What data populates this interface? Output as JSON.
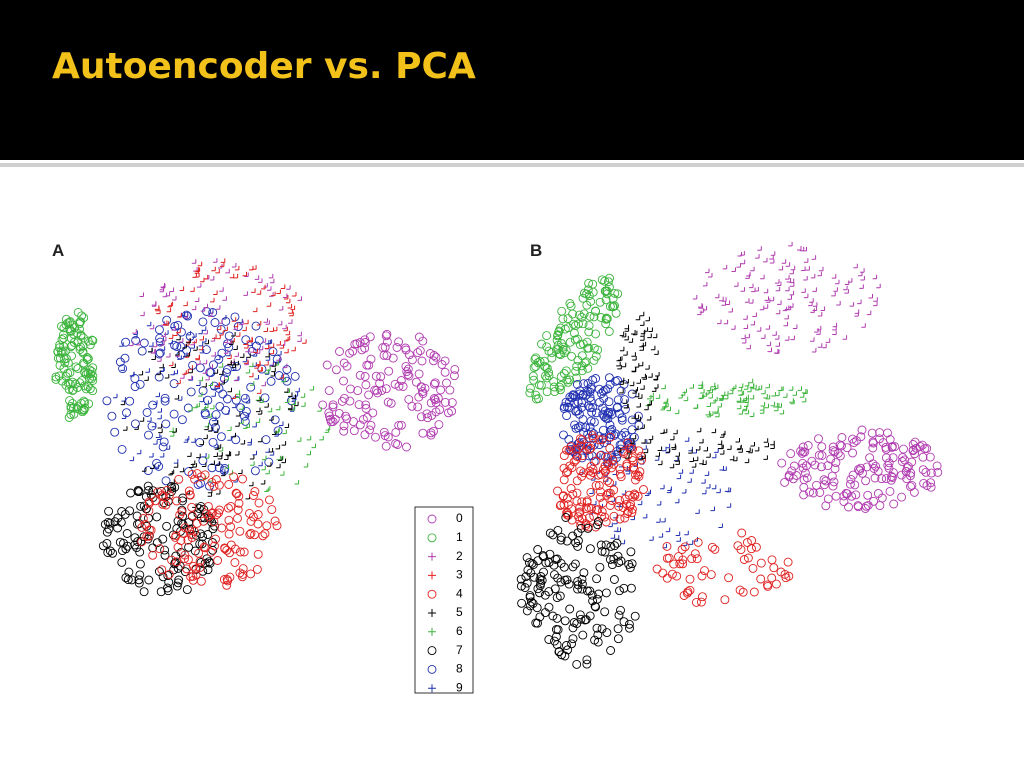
{
  "slide": {
    "title": "Autoencoder vs. PCA",
    "panels": [
      {
        "label": "A"
      },
      {
        "label": "B"
      }
    ],
    "legend": [
      {
        "label": "0",
        "marker": "circle",
        "color": "#b03cb0"
      },
      {
        "label": "1",
        "marker": "circle",
        "color": "#3cb43c"
      },
      {
        "label": "2",
        "marker": "plus",
        "color": "#b03cb0"
      },
      {
        "label": "3",
        "marker": "plus",
        "color": "#e02020"
      },
      {
        "label": "4",
        "marker": "circle",
        "color": "#e02020"
      },
      {
        "label": "5",
        "marker": "plus",
        "color": "#000000"
      },
      {
        "label": "6",
        "marker": "plus",
        "color": "#3cb43c"
      },
      {
        "label": "7",
        "marker": "circle",
        "color": "#000000"
      },
      {
        "label": "8",
        "marker": "circle",
        "color": "#2030b0"
      },
      {
        "label": "9",
        "marker": "plus",
        "color": "#2030b0"
      }
    ]
  }
}
